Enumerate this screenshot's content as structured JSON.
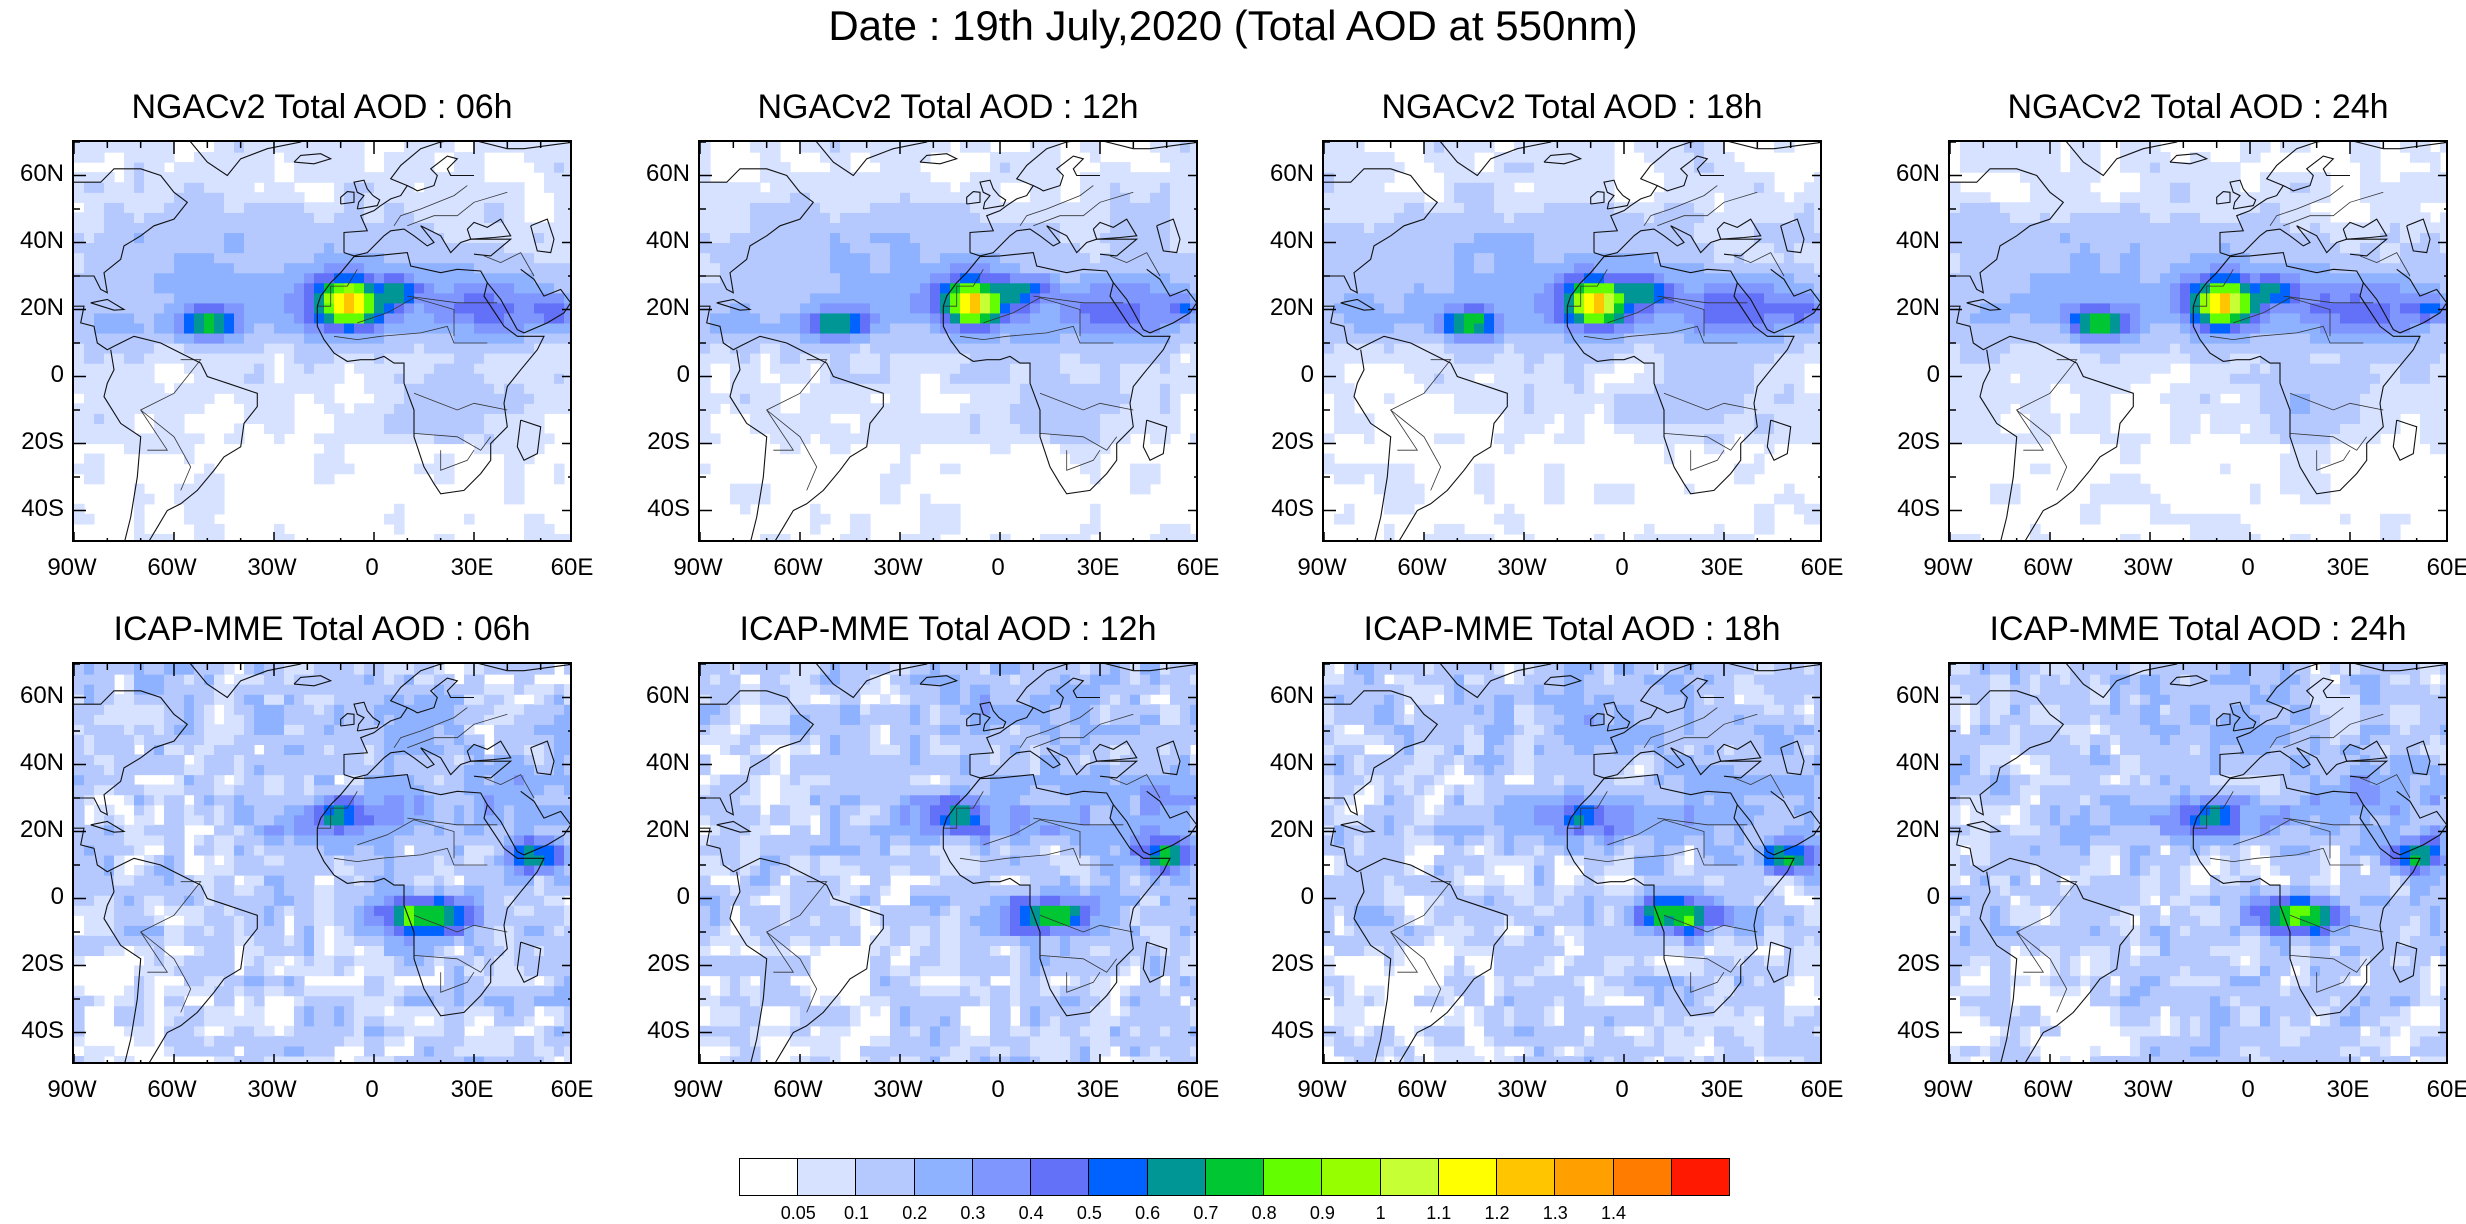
{
  "title": "Date : 19th July,2020 (Total AOD at 550nm)",
  "panels": [
    {
      "title": "NGACv2 Total AOD : 06h",
      "model": "ngac",
      "lead": 0
    },
    {
      "title": "NGACv2 Total AOD : 12h",
      "model": "ngac",
      "lead": 1
    },
    {
      "title": "NGACv2 Total AOD : 18h",
      "model": "ngac",
      "lead": 2
    },
    {
      "title": "NGACv2 Total AOD : 24h",
      "model": "ngac",
      "lead": 3
    },
    {
      "title": "ICAP-MME Total AOD : 06h",
      "model": "icap",
      "lead": 0
    },
    {
      "title": "ICAP-MME Total AOD : 12h",
      "model": "icap",
      "lead": 1
    },
    {
      "title": "ICAP-MME Total AOD : 18h",
      "model": "icap",
      "lead": 2
    },
    {
      "title": "ICAP-MME Total AOD : 24h",
      "model": "icap",
      "lead": 3
    }
  ],
  "map": {
    "lon_range": [
      -90,
      60
    ],
    "lat_range": [
      -50,
      70
    ],
    "y_ticks": [
      {
        "value": 60,
        "label": "60N"
      },
      {
        "value": 40,
        "label": "40N"
      },
      {
        "value": 20,
        "label": "20N"
      },
      {
        "value": 0,
        "label": "0"
      },
      {
        "value": -20,
        "label": "20S"
      },
      {
        "value": -40,
        "label": "40S"
      }
    ],
    "x_ticks": [
      {
        "value": -90,
        "label": "90W"
      },
      {
        "value": -60,
        "label": "60W"
      },
      {
        "value": -30,
        "label": "30W"
      },
      {
        "value": 0,
        "label": "0"
      },
      {
        "value": 30,
        "label": "30E"
      },
      {
        "value": 60,
        "label": "60E"
      }
    ]
  },
  "colorbar": {
    "colors": [
      "#ffffff",
      "#d6e2ff",
      "#b5c9ff",
      "#8eb2ff",
      "#7f96ff",
      "#6370f8",
      "#0063ff",
      "#009696",
      "#00c633",
      "#63ff00",
      "#96ff00",
      "#c6ff33",
      "#ffff00",
      "#ffc600",
      "#ffa000",
      "#ff7c00",
      "#ff1900"
    ],
    "labels": [
      "0.05",
      "0.1",
      "0.2",
      "0.3",
      "0.4",
      "0.5",
      "0.6",
      "0.7",
      "0.8",
      "0.9",
      "1",
      "1.1",
      "1.2",
      "1.3",
      "1.4"
    ]
  }
}
